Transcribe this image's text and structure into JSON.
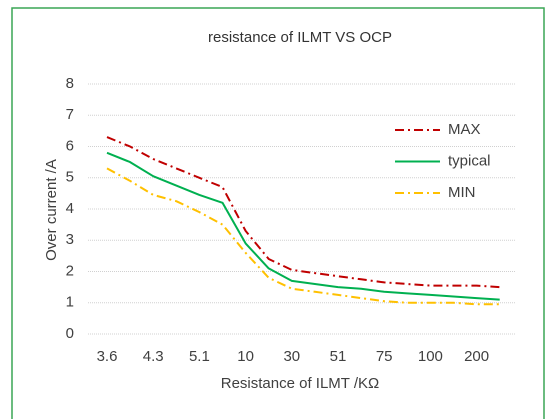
{
  "chart_data": {
    "type": "line",
    "title": "resistance of ILMT VS OCP",
    "x_label": "Resistance of ILMT /KΩ",
    "y_label": "Over current /A",
    "categories": [
      "3.6",
      null,
      "4.3",
      null,
      "5.1",
      null,
      "10",
      null,
      "30",
      null,
      "51",
      null,
      "75",
      null,
      "100",
      null,
      "200",
      null
    ],
    "series": [
      {
        "name": "MAX",
        "color": "#c00000",
        "style": "dashdot",
        "values": [
          6.3,
          6.0,
          5.6,
          5.3,
          5.0,
          4.7,
          3.3,
          2.4,
          2.05,
          1.95,
          1.85,
          1.75,
          1.65,
          1.6,
          1.55,
          1.55,
          1.55,
          1.5
        ]
      },
      {
        "name": "typical",
        "color": "#00b050",
        "style": "solid",
        "values": [
          5.8,
          5.5,
          5.05,
          4.75,
          4.45,
          4.2,
          2.9,
          2.1,
          1.7,
          1.6,
          1.5,
          1.45,
          1.35,
          1.3,
          1.25,
          1.2,
          1.15,
          1.1
        ]
      },
      {
        "name": "MIN",
        "color": "#ffc000",
        "style": "dashdot",
        "values": [
          5.3,
          4.9,
          4.45,
          4.25,
          3.9,
          3.5,
          2.6,
          1.8,
          1.45,
          1.35,
          1.25,
          1.15,
          1.05,
          1.0,
          1.0,
          1.0,
          0.95,
          0.95
        ]
      }
    ],
    "ylim": [
      0,
      8
    ],
    "yticks": [
      0,
      1,
      2,
      3,
      4,
      5,
      6,
      7,
      8
    ],
    "grid": true,
    "legend": "top-right"
  }
}
